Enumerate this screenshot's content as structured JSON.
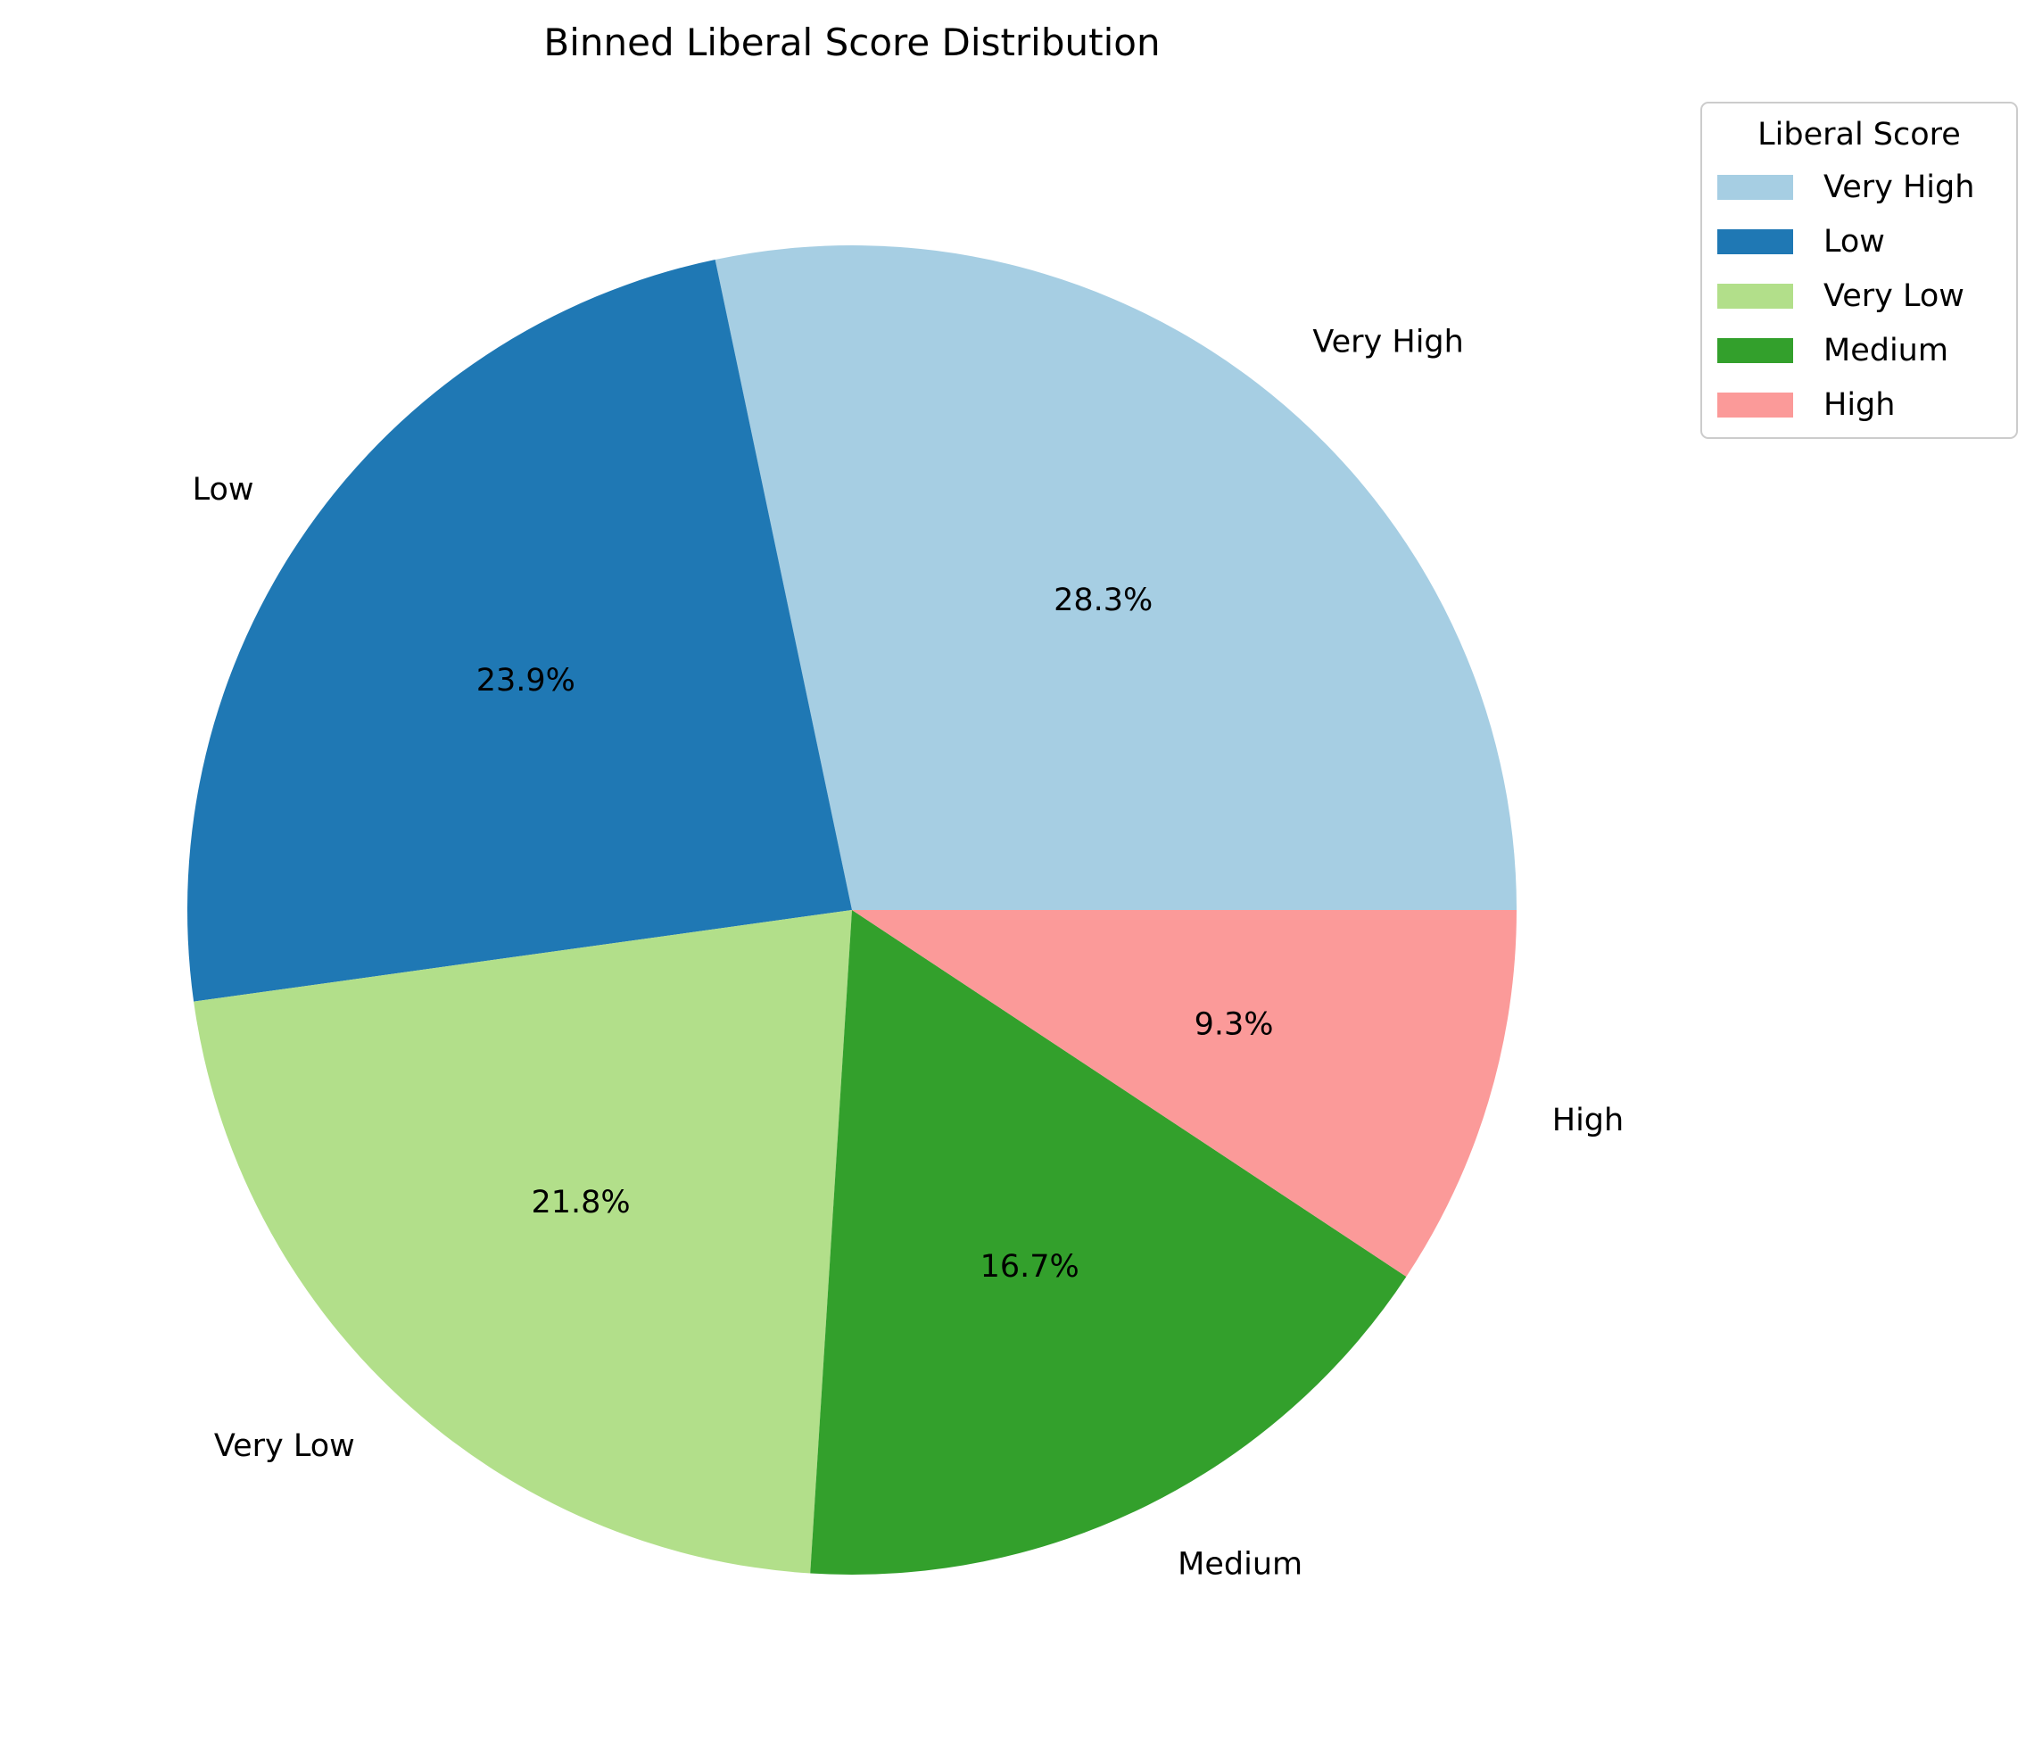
{
  "chart_data": {
    "type": "pie",
    "title": "Binned Liberal Score Distribution",
    "categories": [
      "Very High",
      "Low",
      "Very Low",
      "Medium",
      "High"
    ],
    "values": [
      28.3,
      23.9,
      21.8,
      16.7,
      9.3
    ],
    "value_labels": [
      "28.3%",
      "23.9%",
      "21.8%",
      "16.7%",
      "9.3%"
    ],
    "colors": [
      "#a6cee3",
      "#1f78b4",
      "#b2df8a",
      "#33a02c",
      "#fb9a99"
    ],
    "start_angle_deg": 0,
    "direction": "counterclockwise",
    "legend": {
      "title": "Liberal Score",
      "placement": "top-right, outside plot",
      "entries": [
        "Very High",
        "Low",
        "Very Low",
        "Medium",
        "High"
      ]
    }
  }
}
